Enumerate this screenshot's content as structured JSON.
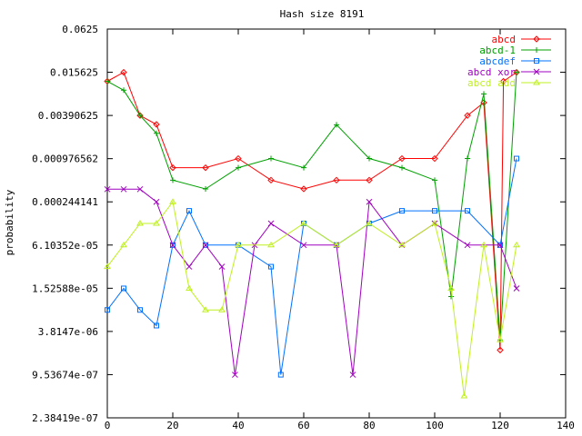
{
  "chart_data": {
    "type": "line",
    "title": "Hash size 8191",
    "xlabel": "",
    "ylabel": "probability",
    "x_range": [
      0,
      140
    ],
    "y_scale": "log2",
    "y_range": [
      2.38419e-07,
      0.0625
    ],
    "x_ticks": [
      "0",
      "20",
      "40",
      "60",
      "80",
      "100",
      "120",
      "140"
    ],
    "y_ticks": [
      "0.0625",
      "0.015625",
      "0.00390625",
      "0.000976562",
      "0.000244141",
      "6.10352e-05",
      "1.52588e-05",
      "3.8147e-06",
      "9.53674e-07",
      "2.38419e-07"
    ],
    "y_tick_values": [
      0.0625,
      0.015625,
      0.00390625,
      0.000976562,
      0.000244141,
      6.10352e-05,
      1.52588e-05,
      3.8147e-06,
      9.53674e-07,
      2.38419e-07
    ],
    "legend_position": "top-right",
    "grid": false,
    "series": [
      {
        "name": "abcd",
        "color": "#ff0000",
        "marker": "diamond",
        "x": [
          0,
          5,
          10,
          15,
          20,
          30,
          40,
          50,
          60,
          70,
          80,
          90,
          100,
          110,
          115,
          120,
          121,
          125
        ],
        "y": [
          0.0117,
          0.0156,
          0.0039,
          0.00293,
          0.00073,
          0.00073,
          0.00098,
          0.00049,
          0.00037,
          0.00049,
          0.00049,
          0.00098,
          0.00098,
          0.0039,
          0.0059,
          2.1e-06,
          0.0117,
          0.0156
        ]
      },
      {
        "name": "abcd-1",
        "color": "#00a000",
        "marker": "plus",
        "x": [
          0,
          5,
          10,
          15,
          20,
          30,
          40,
          50,
          60,
          70,
          80,
          90,
          100,
          105,
          110,
          115,
          120,
          125
        ],
        "y": [
          0.0117,
          0.0088,
          0.0039,
          0.0022,
          0.00049,
          0.00037,
          0.00073,
          0.00098,
          0.00073,
          0.0029,
          0.00098,
          0.00073,
          0.00049,
          1.17e-05,
          0.00098,
          0.0078,
          2.9e-06,
          0.0156
        ]
      },
      {
        "name": "abcdef",
        "color": "#0070ff",
        "marker": "square",
        "x": [
          0,
          5,
          10,
          15,
          20,
          25,
          30,
          40,
          50,
          53,
          60,
          70,
          80,
          90,
          100,
          110,
          120,
          125
        ],
        "y": [
          7.6e-06,
          1.52e-05,
          7.6e-06,
          4.6e-06,
          6.1e-05,
          0.000183,
          6.1e-05,
          6.1e-05,
          3.05e-05,
          9.5e-07,
          0.000122,
          6.1e-05,
          0.000122,
          0.000183,
          0.000183,
          0.000183,
          6.1e-05,
          0.00098
        ]
      },
      {
        "name": "abcd xor",
        "color": "#a000c0",
        "marker": "x",
        "x": [
          0,
          5,
          10,
          15,
          20,
          25,
          30,
          35,
          39,
          45,
          50,
          60,
          70,
          75,
          80,
          90,
          100,
          110,
          120,
          125
        ],
        "y": [
          0.000366,
          0.000366,
          0.000366,
          0.000244,
          6.1e-05,
          3.05e-05,
          6.1e-05,
          3.05e-05,
          9.5e-07,
          6.1e-05,
          0.000122,
          6.1e-05,
          6.1e-05,
          9.5e-07,
          0.000244,
          6.1e-05,
          0.000122,
          6.1e-05,
          6.1e-05,
          1.52e-05
        ]
      },
      {
        "name": "abcd add",
        "color": "#c0f020",
        "marker": "triangle",
        "x": [
          0,
          5,
          10,
          15,
          20,
          25,
          30,
          35,
          40,
          50,
          60,
          70,
          80,
          90,
          100,
          105,
          109,
          115,
          120,
          125
        ],
        "y": [
          3.05e-05,
          6.1e-05,
          0.000122,
          0.000122,
          0.000244,
          1.52e-05,
          7.6e-06,
          7.6e-06,
          6.1e-05,
          6.1e-05,
          0.000122,
          6.1e-05,
          0.000122,
          6.1e-05,
          0.000122,
          1.52e-05,
          4.8e-07,
          6.1e-05,
          2.9e-06,
          6.1e-05
        ]
      }
    ]
  }
}
